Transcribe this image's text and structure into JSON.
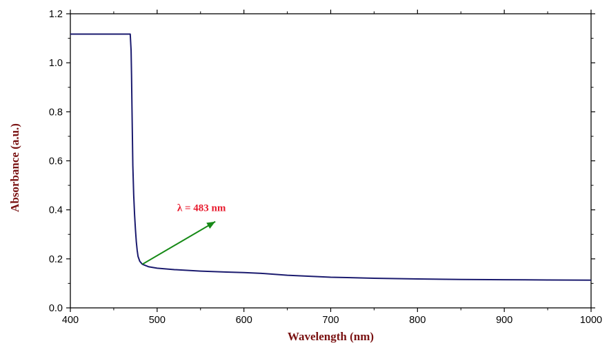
{
  "chart_data": {
    "type": "line",
    "title": "",
    "xlabel": "Wavelength (nm)",
    "ylabel": "Absorbance (a.u.)",
    "xlim": [
      400,
      1000
    ],
    "ylim": [
      0.0,
      1.2
    ],
    "x_ticks": [
      400,
      500,
      600,
      700,
      800,
      900,
      1000
    ],
    "y_ticks": [
      0.0,
      0.2,
      0.4,
      0.6,
      0.8,
      1.0,
      1.2
    ],
    "x_tick_labels": [
      "400",
      "500",
      "600",
      "700",
      "800",
      "900",
      "1000"
    ],
    "y_tick_labels": [
      "0.0",
      "0.2",
      "0.4",
      "0.6",
      "0.8",
      "1.0",
      "1.2"
    ],
    "grid": false,
    "series": [
      {
        "color": "#1a1a6e",
        "x": [
          400,
          469,
          470,
          470.5,
          471,
          471.5,
          472,
          473,
          474,
          475,
          476,
          477,
          478,
          480,
          483,
          490,
          500,
          520,
          550,
          580,
          600,
          620,
          650,
          700,
          750,
          800,
          850,
          900,
          950,
          1000
        ],
        "y": [
          1.117,
          1.117,
          1.05,
          0.95,
          0.82,
          0.7,
          0.58,
          0.46,
          0.38,
          0.32,
          0.27,
          0.235,
          0.21,
          0.19,
          0.178,
          0.168,
          0.162,
          0.156,
          0.15,
          0.146,
          0.144,
          0.141,
          0.133,
          0.125,
          0.121,
          0.118,
          0.116,
          0.115,
          0.114,
          0.113
        ]
      }
    ],
    "annotation": {
      "text": "λ = 483 nm",
      "point": [
        483,
        0.178
      ],
      "arrow_to": [
        567,
        0.352
      ],
      "text_color": "#e8192c",
      "arrow_color": "#178a17"
    },
    "axis_title_color": "#7a1212"
  }
}
